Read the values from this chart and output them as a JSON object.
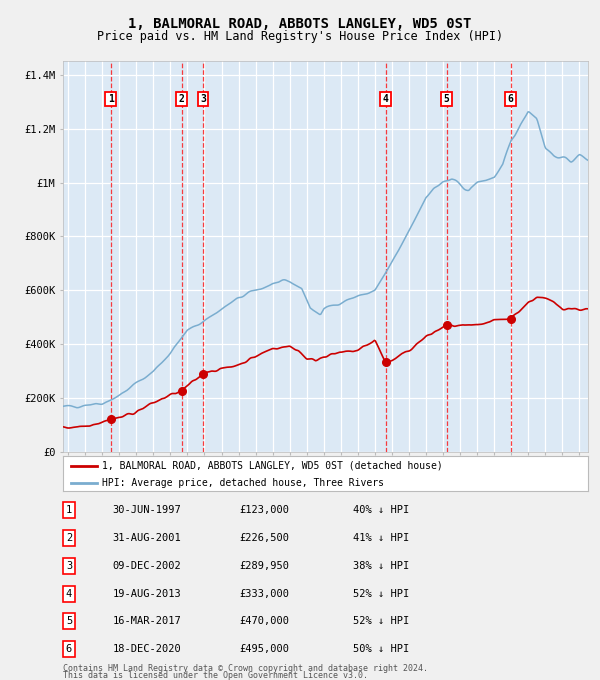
{
  "title": "1, BALMORAL ROAD, ABBOTS LANGLEY, WD5 0ST",
  "subtitle": "Price paid vs. HM Land Registry's House Price Index (HPI)",
  "title_fontsize": 10,
  "subtitle_fontsize": 8.5,
  "background_color": "#f0f0f0",
  "plot_bg_color": "#dce9f5",
  "grid_color": "#ffffff",
  "ylim": [
    0,
    1450000
  ],
  "xlim_start": 1994.7,
  "xlim_end": 2025.5,
  "sales": [
    {
      "num": 1,
      "year": 1997.5,
      "price": 123000
    },
    {
      "num": 2,
      "year": 2001.67,
      "price": 226500
    },
    {
      "num": 3,
      "year": 2002.92,
      "price": 289950
    },
    {
      "num": 4,
      "year": 2013.63,
      "price": 333000
    },
    {
      "num": 5,
      "year": 2017.21,
      "price": 470000
    },
    {
      "num": 6,
      "year": 2020.96,
      "price": 495000
    }
  ],
  "legend_entries": [
    "1, BALMORAL ROAD, ABBOTS LANGLEY, WD5 0ST (detached house)",
    "HPI: Average price, detached house, Three Rivers"
  ],
  "footer_line1": "Contains HM Land Registry data © Crown copyright and database right 2024.",
  "footer_line2": "This data is licensed under the Open Government Licence v3.0.",
  "sale_color": "#cc0000",
  "hpi_color": "#7aadcf",
  "ytick_labels": [
    "£0",
    "£200K",
    "£400K",
    "£600K",
    "£800K",
    "£1M",
    "£1.2M",
    "£1.4M"
  ],
  "ytick_values": [
    0,
    200000,
    400000,
    600000,
    800000,
    1000000,
    1200000,
    1400000
  ],
  "table_data": [
    [
      "1",
      "30-JUN-1997",
      "£123,000",
      "40% ↓ HPI"
    ],
    [
      "2",
      "31-AUG-2001",
      "£226,500",
      "41% ↓ HPI"
    ],
    [
      "3",
      "09-DEC-2002",
      "£289,950",
      "38% ↓ HPI"
    ],
    [
      "4",
      "19-AUG-2013",
      "£333,000",
      "52% ↓ HPI"
    ],
    [
      "5",
      "16-MAR-2017",
      "£470,000",
      "52% ↓ HPI"
    ],
    [
      "6",
      "18-DEC-2020",
      "£495,000",
      "50% ↓ HPI"
    ]
  ]
}
